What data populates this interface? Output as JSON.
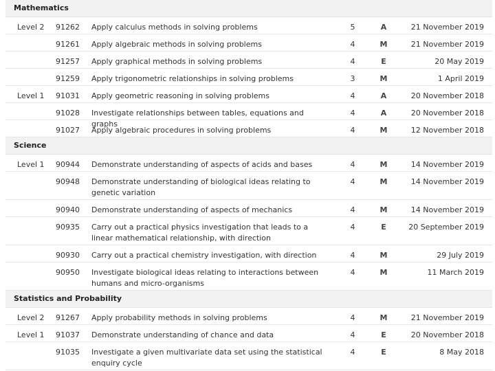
{
  "sections": [
    {
      "name": "Mathematics",
      "rows": [
        {
          "level": "Level 2",
          "code": "91262",
          "title": "Apply calculus methods in solving problems",
          "credits": "5",
          "grade": "A",
          "date": "21 November 2019"
        },
        {
          "level": "",
          "code": "91261",
          "title": "Apply algebraic methods in solving problems",
          "credits": "4",
          "grade": "M",
          "date": "21 November 2019"
        },
        {
          "level": "",
          "code": "91257",
          "title": "Apply graphical methods in solving problems",
          "credits": "4",
          "grade": "E",
          "date": "20 May 2019"
        },
        {
          "level": "",
          "code": "91259",
          "title": "Apply trigonometric relationships in solving problems",
          "credits": "3",
          "grade": "M",
          "date": "1 April 2019"
        },
        {
          "level": "Level 1",
          "code": "91031",
          "title": "Apply geometric reasoning in solving problems",
          "credits": "4",
          "grade": "A",
          "date": "20 November 2018"
        },
        {
          "level": "",
          "code": "91028",
          "title": "Investigate relationships between tables, equations and graphs",
          "credits": "4",
          "grade": "A",
          "date": "20 November 2018"
        },
        {
          "level": "",
          "code": "91027",
          "title": "Apply algebraic procedures in solving problems",
          "credits": "4",
          "grade": "M",
          "date": "12 November 2018"
        }
      ]
    },
    {
      "name": "Science",
      "rows": [
        {
          "level": "Level 1",
          "code": "90944",
          "title": "Demonstrate understanding of aspects of acids and bases",
          "credits": "4",
          "grade": "M",
          "date": "14 November 2019"
        },
        {
          "level": "",
          "code": "90948",
          "title": "Demonstrate understanding of biological ideas relating to genetic variation",
          "credits": "4",
          "grade": "M",
          "date": "14 November 2019"
        },
        {
          "level": "",
          "code": "90940",
          "title": "Demonstrate understanding of aspects of mechanics",
          "credits": "4",
          "grade": "M",
          "date": "14 November 2019"
        },
        {
          "level": "",
          "code": "90935",
          "title": "Carry out a practical physics investigation that leads to a linear mathematical relationship, with direction",
          "credits": "4",
          "grade": "E",
          "date": "20 September 2019"
        },
        {
          "level": "",
          "code": "90930",
          "title": "Carry out a practical chemistry investigation, with direction",
          "credits": "4",
          "grade": "M",
          "date": "29 July 2019"
        },
        {
          "level": "",
          "code": "90950",
          "title": "Investigate biological ideas relating to interactions between humans and micro-organisms",
          "credits": "4",
          "grade": "M",
          "date": "11 March 2019"
        }
      ]
    },
    {
      "name": "Statistics and Probability",
      "rows": [
        {
          "level": "Level 2",
          "code": "91267",
          "title": "Apply probability methods in solving problems",
          "credits": "4",
          "grade": "M",
          "date": "21 November 2019"
        },
        {
          "level": "Level 1",
          "code": "91037",
          "title": "Demonstrate understanding of chance and data",
          "credits": "4",
          "grade": "E",
          "date": "20 November 2018"
        },
        {
          "level": "",
          "code": "91035",
          "title": "Investigate a given multivariate data set using the statistical enquiry cycle",
          "credits": "4",
          "grade": "E",
          "date": "8 May 2018"
        }
      ]
    }
  ]
}
